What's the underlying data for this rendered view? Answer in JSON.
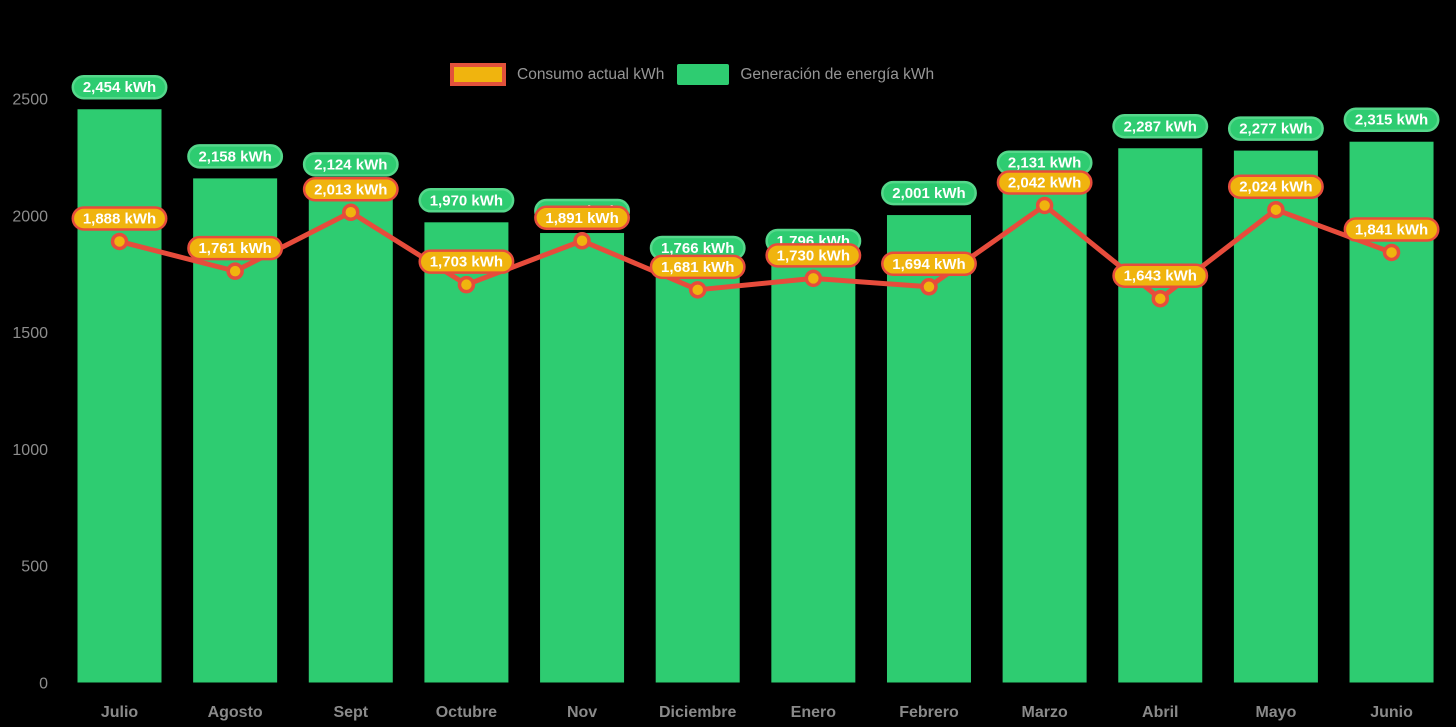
{
  "legend": {
    "items": [
      {
        "label": "Consumo actual kWh",
        "swatch_fill": "#f0b40e",
        "swatch_border": "#e2513b"
      },
      {
        "label": "Generación de energía kWh",
        "swatch_fill": "#2ecc71"
      }
    ]
  },
  "chart_data": {
    "type": "bar",
    "categories": [
      "Julio",
      "Agosto",
      "Sept",
      "Octubre",
      "Nov",
      "Diciembre",
      "Enero",
      "Febrero",
      "Marzo",
      "Abril",
      "Mayo",
      "Junio"
    ],
    "series": [
      {
        "name": "Generación de energía kWh",
        "type": "bar",
        "color": "#2ecc71",
        "label_stroke": "#55d88b",
        "values": [
          2454,
          2158,
          2124,
          1970,
          1924,
          1766,
          1796,
          2001,
          2131,
          2287,
          2277,
          2315
        ],
        "labels": [
          "2,454 kWh",
          "2,158 kWh",
          "2,124 kWh",
          "1,970 kWh",
          "1,924 kWh",
          "1,766 kWh",
          "1.796 kWh",
          "2,001 kWh",
          "2,131 kWh",
          "2,287 kWh",
          "2,277 kWh",
          "2,315 kWh"
        ]
      },
      {
        "name": "Consumo actual kWh",
        "type": "line",
        "color": "#e74c3c",
        "marker_fill": "#f0b40e",
        "values": [
          1888,
          1761,
          2013,
          1703,
          1891,
          1681,
          1730,
          1694,
          2042,
          1643,
          2024,
          1841
        ],
        "labels": [
          "1,888 kWh",
          "1,761 kWh",
          "2,013 kWh",
          "1,703 kWh",
          "1,891 kWh",
          "1,681 kWh",
          "1,730 kWh",
          "1,694 kWh",
          "2,042 kWh",
          "1,643 kWh",
          "2,024 kWh",
          "1,841 kWh"
        ]
      }
    ],
    "ylim": [
      0,
      2500
    ],
    "yticks": [
      "0",
      "500",
      "1000",
      "1500",
      "2000",
      "2500"
    ],
    "grid": false,
    "legend_position": "top-center",
    "background": "#000000"
  }
}
